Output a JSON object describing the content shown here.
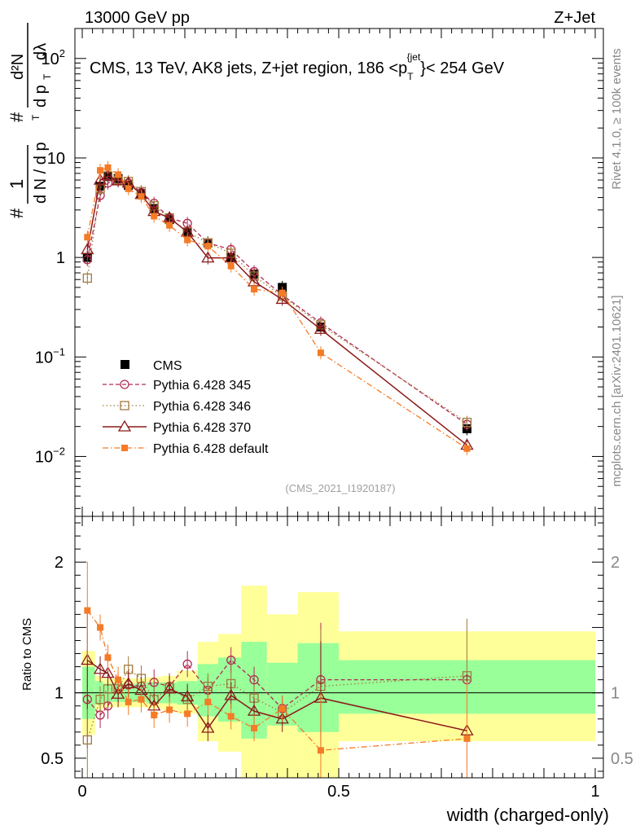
{
  "header": {
    "left_label": "13000 GeV pp",
    "right_label": "Z+Jet"
  },
  "side_labels": {
    "rivet": "Rivet 4.1.0, ≥ 100k events",
    "mcplots": "mcplots.cern.ch [arXiv:2401.10621]"
  },
  "colors": {
    "cms": "#000000",
    "p345": "#b22a52",
    "p346": "#a07a3c",
    "p370": "#8b1a1a",
    "pdef": "#f47b27",
    "band_inner": "#99ff99",
    "band_outer": "#ffff99"
  },
  "chart_data": [
    {
      "type": "line",
      "panel": "main",
      "title": "CMS, 13 TeV, AK8 jets, Z+jet region, 186 <p_T^{jet}< 254 GeV",
      "title_parts": {
        "prefix": "CMS, 13 TeV, AK8 jets, Z+jet region, 186 <",
        "p": "p",
        "sub": "T",
        "sup": "{jet",
        "close": "}",
        "suffix": "< 254 GeV"
      },
      "ylabel_parts": {
        "hash": "#",
        "one": "1",
        "dn": "d N / d p",
        "t": "T",
        "d2n": "d²N",
        "dpt": "d p",
        "dlam": "dλ"
      },
      "yscale": "log",
      "ylim": [
        0.0025,
        200
      ],
      "xlim": [
        -0.02,
        1.0
      ],
      "yticks": [
        {
          "value": 0.01,
          "base": "10",
          "exp": "−2"
        },
        {
          "value": 0.1,
          "base": "10",
          "exp": "−1"
        },
        {
          "value": 1,
          "base": "1",
          "exp": ""
        },
        {
          "value": 10,
          "base": "10",
          "exp": ""
        },
        {
          "value": 100,
          "base": "10",
          "exp": "2"
        }
      ],
      "watermark": "(CMS_2021_I1920187)",
      "x": [
        0.01,
        0.035,
        0.05,
        0.07,
        0.09,
        0.115,
        0.14,
        0.17,
        0.205,
        0.245,
        0.29,
        0.335,
        0.39,
        0.465,
        0.75
      ],
      "series": [
        {
          "name": "CMS",
          "key": "cms",
          "marker": "square-filled",
          "style": "none",
          "values": [
            1.0,
            5.2,
            6.5,
            6.2,
            5.3,
            4.4,
            3.1,
            2.4,
            1.8,
            1.4,
            1.0,
            0.68,
            0.5,
            0.2,
            0.019
          ]
        },
        {
          "name": "Pythia 6.428 345",
          "key": "p345",
          "marker": "circle-open",
          "style": "dashed",
          "values": [
            0.95,
            4.2,
            5.6,
            6.0,
            5.6,
            4.5,
            3.5,
            2.5,
            2.2,
            1.4,
            1.2,
            0.72,
            0.42,
            0.22,
            0.021
          ]
        },
        {
          "name": "Pythia 6.428 346",
          "key": "p346",
          "marker": "square-open",
          "style": "dotted",
          "values": [
            0.62,
            4.9,
            6.6,
            6.0,
            5.8,
            4.6,
            3.3,
            2.5,
            1.8,
            1.4,
            1.1,
            0.65,
            0.41,
            0.21,
            0.022
          ]
        },
        {
          "name": "Pythia 6.428 370",
          "key": "p370",
          "marker": "triangle-open",
          "style": "solid",
          "values": [
            1.2,
            6.0,
            6.6,
            5.9,
            5.6,
            4.3,
            2.9,
            2.5,
            1.8,
            0.99,
            0.99,
            0.57,
            0.38,
            0.19,
            0.013
          ]
        },
        {
          "name": "Pythia 6.428 default",
          "key": "pdef",
          "marker": "square-small-filled",
          "style": "dashdot",
          "values": [
            1.6,
            7.5,
            8.0,
            6.8,
            4.9,
            4.1,
            2.6,
            2.1,
            1.5,
            1.3,
            0.82,
            0.48,
            0.44,
            0.11,
            0.012
          ]
        }
      ]
    },
    {
      "type": "line",
      "panel": "ratio",
      "ylabel": "Ratio to CMS",
      "xlabel": "width (charged-only)",
      "ylim": [
        0.35,
        2.35
      ],
      "xlim": [
        -0.02,
        1.0
      ],
      "yticks": [
        {
          "value": 0.5,
          "label": "0.5"
        },
        {
          "value": 1,
          "label": "1"
        },
        {
          "value": 2,
          "label": "2"
        }
      ],
      "xticks": [
        {
          "value": 0,
          "label": "0"
        },
        {
          "value": 0.5,
          "label": "0.5"
        },
        {
          "value": 1,
          "label": "1"
        }
      ],
      "bins": [
        {
          "lo": 0.0,
          "hi": 0.025,
          "inner": [
            0.8,
            1.2
          ],
          "outer": [
            0.68,
            1.32
          ]
        },
        {
          "lo": 0.025,
          "hi": 0.04,
          "inner": [
            0.91,
            1.09
          ],
          "outer": [
            0.87,
            1.13
          ]
        },
        {
          "lo": 0.04,
          "hi": 0.06,
          "inner": [
            0.93,
            1.07
          ],
          "outer": [
            0.89,
            1.11
          ]
        },
        {
          "lo": 0.06,
          "hi": 0.08,
          "inner": [
            0.93,
            1.07
          ],
          "outer": [
            0.89,
            1.11
          ]
        },
        {
          "lo": 0.08,
          "hi": 0.1,
          "inner": [
            0.93,
            1.07
          ],
          "outer": [
            0.89,
            1.11
          ]
        },
        {
          "lo": 0.1,
          "hi": 0.125,
          "inner": [
            0.93,
            1.07
          ],
          "outer": [
            0.89,
            1.11
          ]
        },
        {
          "lo": 0.125,
          "hi": 0.155,
          "inner": [
            0.92,
            1.08
          ],
          "outer": [
            0.88,
            1.12
          ]
        },
        {
          "lo": 0.155,
          "hi": 0.185,
          "inner": [
            0.92,
            1.08
          ],
          "outer": [
            0.87,
            1.13
          ]
        },
        {
          "lo": 0.185,
          "hi": 0.225,
          "inner": [
            0.91,
            1.09
          ],
          "outer": [
            0.84,
            1.17
          ]
        },
        {
          "lo": 0.225,
          "hi": 0.265,
          "inner": [
            0.82,
            1.22
          ],
          "outer": [
            0.63,
            1.39
          ]
        },
        {
          "lo": 0.265,
          "hi": 0.31,
          "inner": [
            0.78,
            1.27
          ],
          "outer": [
            0.55,
            1.45
          ]
        },
        {
          "lo": 0.31,
          "hi": 0.36,
          "inner": [
            0.65,
            1.39
          ],
          "outer": [
            0.35,
            1.82
          ]
        },
        {
          "lo": 0.36,
          "hi": 0.42,
          "inner": [
            0.75,
            1.23
          ],
          "outer": [
            0.35,
            1.6
          ]
        },
        {
          "lo": 0.42,
          "hi": 0.5,
          "inner": [
            0.7,
            1.38
          ],
          "outer": [
            0.35,
            1.77
          ]
        },
        {
          "lo": 0.5,
          "hi": 1.0,
          "inner": [
            0.84,
            1.25
          ],
          "outer": [
            0.63,
            1.47
          ]
        }
      ],
      "series": [
        {
          "name": "Pythia 6.428 345",
          "key": "p345",
          "values": [
            0.95,
            0.83,
            0.9,
            1.05,
            1.06,
            1.05,
            1.08,
            1.05,
            1.22,
            1.02,
            1.25,
            1.1,
            0.88,
            1.1,
            1.1
          ]
        },
        {
          "name": "Pythia 6.428 346",
          "key": "p346",
          "values": [
            0.64,
            0.95,
            1.03,
            1.03,
            1.18,
            1.11,
            0.95,
            1.04,
            0.95,
            1.05,
            1.07,
            0.96,
            0.85,
            1.05,
            1.13
          ]
        },
        {
          "name": "Pythia 6.428 370",
          "key": "p370",
          "values": [
            1.25,
            1.18,
            1.15,
            0.99,
            1.07,
            1.02,
            0.9,
            1.03,
            0.97,
            0.73,
            0.98,
            0.86,
            0.8,
            0.96,
            0.71
          ]
        },
        {
          "name": "Pythia 6.428 default",
          "key": "pdef",
          "values": [
            1.63,
            1.5,
            1.27,
            1.1,
            0.93,
            0.95,
            0.83,
            0.87,
            0.84,
            0.93,
            0.82,
            0.73,
            0.88,
            0.56,
            0.65
          ]
        }
      ]
    }
  ]
}
